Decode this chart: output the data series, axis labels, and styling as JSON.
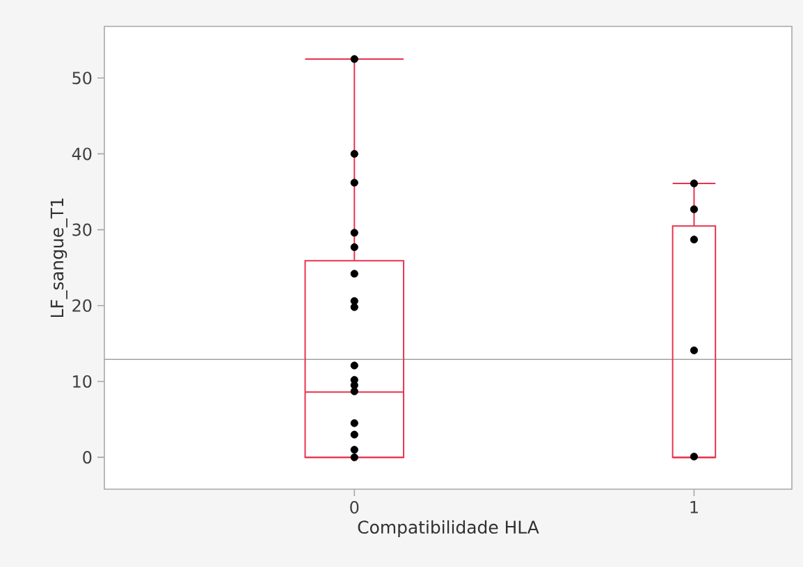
{
  "chart_data": {
    "type": "box",
    "xlabel": "Compatibilidade HLA",
    "ylabel": "LF_sangue_T1",
    "categories": [
      "0",
      "1"
    ],
    "ylim": [
      -4.2,
      56.8
    ],
    "yticks": [
      0,
      10,
      20,
      30,
      40,
      50
    ],
    "marker": "circle",
    "series": [
      {
        "type": "box",
        "color": "#e8334f",
        "boxes": [
          {
            "low": 0,
            "q1": 0,
            "median": 8.6,
            "q3": 25.9,
            "high": 52.5
          },
          {
            "low": 0,
            "q1": 0,
            "median": 0,
            "q3": 30.5,
            "high": 36.1
          }
        ]
      },
      {
        "type": "scatter",
        "color": "#000000",
        "x": [
          "0",
          "0",
          "0",
          "0",
          "0",
          "0",
          "0",
          "0",
          "0",
          "0",
          "0",
          "0",
          "0",
          "0",
          "0",
          "0",
          "1",
          "1",
          "1",
          "1",
          "1"
        ],
        "values": [
          52.5,
          40.0,
          36.2,
          29.6,
          27.7,
          24.2,
          20.6,
          19.8,
          12.1,
          10.2,
          9.5,
          8.7,
          4.5,
          3.0,
          1.0,
          0,
          36.1,
          32.7,
          28.7,
          14.1,
          0.1
        ]
      }
    ],
    "ref_lines": [
      {
        "axis": "y",
        "value": 12.9,
        "color": "#a0a0a0"
      }
    ]
  }
}
